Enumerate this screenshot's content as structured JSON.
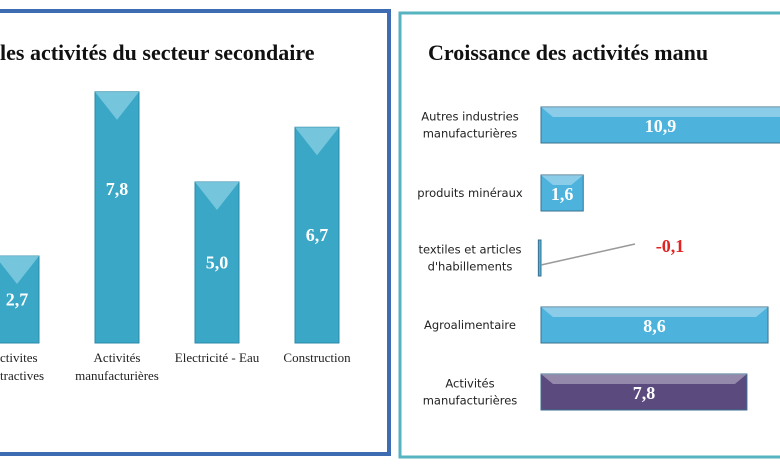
{
  "chart_data": [
    {
      "type": "bar",
      "title": "les activités du secteur secondaire",
      "categories": [
        [
          "ctivites",
          "tractives"
        ],
        [
          "Activités",
          "manufacturières"
        ],
        [
          "Electricité - Eau"
        ],
        [
          "Construction"
        ]
      ],
      "values": [
        2.7,
        7.8,
        5.0,
        6.7
      ],
      "value_labels": [
        "2,7",
        "7,8",
        "5,0",
        "6,7"
      ],
      "color": "#3aa7c6"
    },
    {
      "type": "barh",
      "title": "Croissance des activités manu",
      "categories": [
        [
          "Autres industries",
          "manufacturières"
        ],
        [
          "produits minéraux"
        ],
        [
          "textiles et articles",
          "d'habillements"
        ],
        [
          "Agroalimentaire"
        ],
        [
          "Activités",
          "manufacturières"
        ]
      ],
      "values": [
        10.9,
        1.6,
        -0.1,
        8.6,
        7.8
      ],
      "value_labels": [
        "10,9",
        "1,6",
        "-0,1",
        "8,6",
        "7,8"
      ],
      "colors": [
        "#4db3dd",
        "#4db3dd",
        "#4db3dd",
        "#4db3dd",
        "#5b4a7e"
      ],
      "negative_label_color": "#e02424"
    }
  ]
}
